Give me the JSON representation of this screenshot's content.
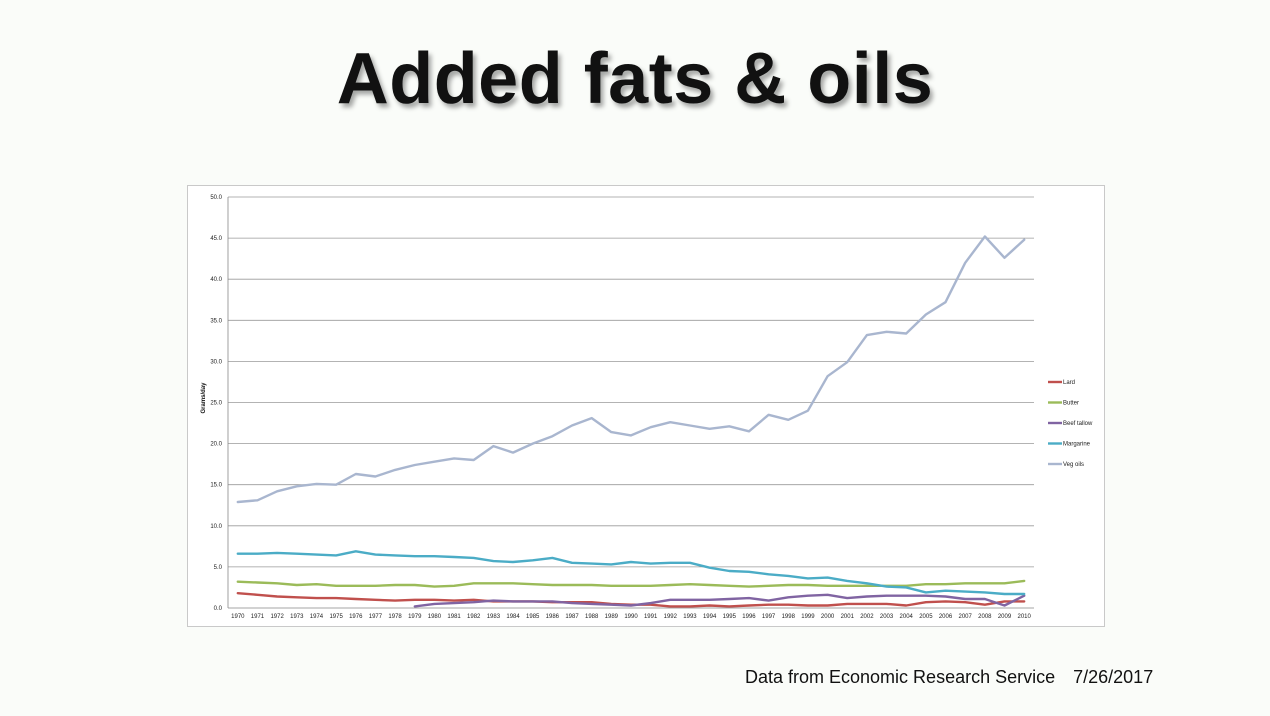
{
  "slide": {
    "title": "Added fats & oils",
    "source": "Data from Economic Research Service",
    "date": "7/26/2017"
  },
  "chart_data": {
    "type": "line",
    "title": "",
    "xlabel": "",
    "ylabel": "Grams/day",
    "ylim": [
      0,
      50
    ],
    "yticks": [
      "0.0",
      "5.0",
      "10.0",
      "15.0",
      "20.0",
      "25.0",
      "30.0",
      "35.0",
      "40.0",
      "45.0",
      "50.0"
    ],
    "grid": true,
    "legend_position": "right",
    "categories": [
      "1970",
      "1971",
      "1972",
      "1973",
      "1974",
      "1975",
      "1976",
      "1977",
      "1978",
      "1979",
      "1980",
      "1981",
      "1982",
      "1983",
      "1984",
      "1985",
      "1986",
      "1987",
      "1988",
      "1989",
      "1990",
      "1991",
      "1992",
      "1993",
      "1994",
      "1995",
      "1996",
      "1997",
      "1998",
      "1999",
      "2000",
      "2001",
      "2002",
      "2003",
      "2004",
      "2005",
      "2006",
      "2007",
      "2008",
      "2009",
      "2010"
    ],
    "series": [
      {
        "name": "Lard",
        "color": "#c0504d",
        "values": [
          1.8,
          1.6,
          1.4,
          1.3,
          1.2,
          1.2,
          1.1,
          1.0,
          0.9,
          1.0,
          1.0,
          0.9,
          1.0,
          0.8,
          0.8,
          0.8,
          0.7,
          0.7,
          0.7,
          0.5,
          0.4,
          0.4,
          0.2,
          0.2,
          0.3,
          0.2,
          0.3,
          0.4,
          0.4,
          0.3,
          0.3,
          0.5,
          0.5,
          0.5,
          0.3,
          0.7,
          0.8,
          0.7,
          0.4,
          0.8,
          0.8
        ]
      },
      {
        "name": "Butter",
        "color": "#9bbb59",
        "values": [
          3.2,
          3.1,
          3.0,
          2.8,
          2.9,
          2.7,
          2.7,
          2.7,
          2.8,
          2.8,
          2.6,
          2.7,
          3.0,
          3.0,
          3.0,
          2.9,
          2.8,
          2.8,
          2.8,
          2.7,
          2.7,
          2.7,
          2.8,
          2.9,
          2.8,
          2.7,
          2.6,
          2.7,
          2.8,
          2.8,
          2.7,
          2.7,
          2.7,
          2.7,
          2.7,
          2.9,
          2.9,
          3.0,
          3.0,
          3.0,
          3.3
        ]
      },
      {
        "name": "Beef  tallow",
        "color": "#8064a2",
        "values": [
          null,
          null,
          null,
          null,
          null,
          null,
          null,
          null,
          null,
          0.2,
          0.5,
          0.6,
          0.7,
          0.9,
          0.8,
          0.8,
          0.8,
          0.6,
          0.5,
          0.4,
          0.3,
          0.6,
          1.0,
          1.0,
          1.0,
          1.1,
          1.2,
          0.9,
          1.3,
          1.5,
          1.6,
          1.2,
          1.4,
          1.5,
          1.5,
          1.5,
          1.4,
          1.1,
          1.1,
          0.3,
          1.5
        ]
      },
      {
        "name": "Margarine",
        "color": "#4bacc6",
        "values": [
          6.6,
          6.6,
          6.7,
          6.6,
          6.5,
          6.4,
          6.9,
          6.5,
          6.4,
          6.3,
          6.3,
          6.2,
          6.1,
          5.7,
          5.6,
          5.8,
          6.1,
          5.5,
          5.4,
          5.3,
          5.6,
          5.4,
          5.5,
          5.5,
          4.9,
          4.5,
          4.4,
          4.1,
          3.9,
          3.6,
          3.7,
          3.3,
          3.0,
          2.6,
          2.5,
          1.9,
          2.1,
          2.0,
          1.9,
          1.7,
          1.7
        ]
      },
      {
        "name": "Veg oils",
        "color": "#a9b6cf",
        "values": [
          12.9,
          13.1,
          14.2,
          14.8,
          15.1,
          15.0,
          16.3,
          16.0,
          16.8,
          17.4,
          17.8,
          18.2,
          18.0,
          19.7,
          18.9,
          20.0,
          20.9,
          22.2,
          23.1,
          21.4,
          21.0,
          22.0,
          22.6,
          22.2,
          21.8,
          22.1,
          21.5,
          23.5,
          22.9,
          24.0,
          28.2,
          29.9,
          33.2,
          33.6,
          33.4,
          35.7,
          37.2,
          42.0,
          45.2,
          42.6,
          44.8
        ]
      }
    ]
  }
}
